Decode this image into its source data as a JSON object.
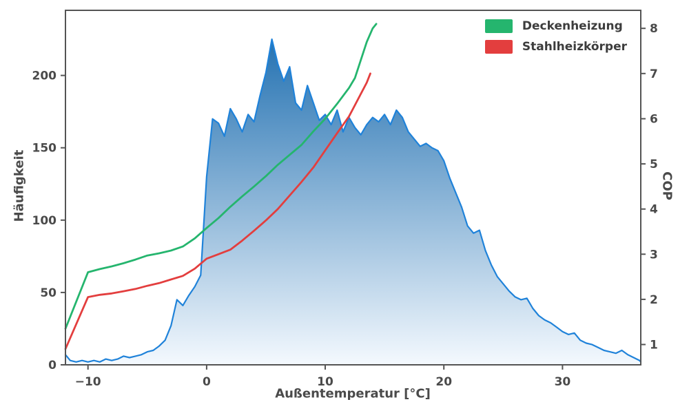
{
  "chart_data": {
    "type": "area+line",
    "title": "",
    "xlabel": "Außentemperatur [°C]",
    "ylabel_left": "Häufigkeit",
    "ylabel_right": "COP",
    "xlim": [
      -11.9,
      36.6
    ],
    "ylim_left": [
      0,
      245
    ],
    "ylim_right": [
      0.55,
      8.4
    ],
    "grid": false,
    "legend_position": "upper right",
    "xtick_values": [
      -10,
      0,
      10,
      20,
      30
    ],
    "xtick_labels": [
      "−10",
      "0",
      "10",
      "20",
      "30"
    ],
    "ytick_left_values": [
      0,
      50,
      100,
      150,
      200
    ],
    "ytick_left_labels": [
      "0",
      "50",
      "100",
      "150",
      "200"
    ],
    "ytick_right_values": [
      1,
      2,
      3,
      4,
      5,
      6,
      7,
      8
    ],
    "ytick_right_labels": [
      "1",
      "2",
      "3",
      "4",
      "5",
      "6",
      "7",
      "8"
    ],
    "style": {
      "spine_color": "#545454",
      "text_color": "#4a4a4a",
      "background": "#ffffff"
    },
    "histogram": {
      "name": "Häufigkeit",
      "axis": "left",
      "line_color": "#1f82d9",
      "gradient_top": "#1266ab",
      "gradient_bottom": "#f4f9fe",
      "points": [
        [
          -11.9,
          7
        ],
        [
          -11.5,
          3
        ],
        [
          -11,
          2
        ],
        [
          -10.5,
          3
        ],
        [
          -10,
          2
        ],
        [
          -9.5,
          3
        ],
        [
          -9,
          2
        ],
        [
          -8.5,
          4
        ],
        [
          -8,
          3
        ],
        [
          -7.5,
          4
        ],
        [
          -7,
          6
        ],
        [
          -6.5,
          5
        ],
        [
          -6,
          6
        ],
        [
          -5.5,
          7
        ],
        [
          -5,
          9
        ],
        [
          -4.5,
          10
        ],
        [
          -4,
          13
        ],
        [
          -3.5,
          17
        ],
        [
          -3,
          27
        ],
        [
          -2.5,
          45
        ],
        [
          -2,
          41
        ],
        [
          -1.5,
          48
        ],
        [
          -1,
          54
        ],
        [
          -0.5,
          62
        ],
        [
          0,
          130
        ],
        [
          0.5,
          170
        ],
        [
          1,
          167
        ],
        [
          1.5,
          158
        ],
        [
          2,
          177
        ],
        [
          2.5,
          170
        ],
        [
          3,
          161
        ],
        [
          3.5,
          173
        ],
        [
          4,
          168
        ],
        [
          4.5,
          186
        ],
        [
          5,
          202
        ],
        [
          5.5,
          225
        ],
        [
          6,
          208
        ],
        [
          6.5,
          196
        ],
        [
          7,
          206
        ],
        [
          7.5,
          181
        ],
        [
          8,
          176
        ],
        [
          8.5,
          193
        ],
        [
          9,
          181
        ],
        [
          9.5,
          169
        ],
        [
          10,
          173
        ],
        [
          10.5,
          166
        ],
        [
          11,
          176
        ],
        [
          11.5,
          161
        ],
        [
          12,
          171
        ],
        [
          12.5,
          164
        ],
        [
          13,
          159
        ],
        [
          13.5,
          166
        ],
        [
          14,
          171
        ],
        [
          14.5,
          168
        ],
        [
          15,
          173
        ],
        [
          15.5,
          166
        ],
        [
          16,
          176
        ],
        [
          16.5,
          171
        ],
        [
          17,
          161
        ],
        [
          17.5,
          156
        ],
        [
          18,
          151
        ],
        [
          18.5,
          153
        ],
        [
          19,
          150
        ],
        [
          19.5,
          148
        ],
        [
          20,
          141
        ],
        [
          20.5,
          129
        ],
        [
          21,
          119
        ],
        [
          21.5,
          109
        ],
        [
          22,
          96
        ],
        [
          22.5,
          91
        ],
        [
          23,
          93
        ],
        [
          23.5,
          79
        ],
        [
          24,
          69
        ],
        [
          24.5,
          61
        ],
        [
          25,
          56
        ],
        [
          25.5,
          51
        ],
        [
          26,
          47
        ],
        [
          26.5,
          45
        ],
        [
          27,
          46
        ],
        [
          27.5,
          39
        ],
        [
          28,
          34
        ],
        [
          28.5,
          31
        ],
        [
          29,
          29
        ],
        [
          29.5,
          26
        ],
        [
          30,
          23
        ],
        [
          30.5,
          21
        ],
        [
          31,
          22
        ],
        [
          31.5,
          17
        ],
        [
          32,
          15
        ],
        [
          32.5,
          14
        ],
        [
          33,
          12
        ],
        [
          33.5,
          10
        ],
        [
          34,
          9
        ],
        [
          34.5,
          8
        ],
        [
          35,
          10
        ],
        [
          35.5,
          7
        ],
        [
          36,
          5
        ],
        [
          36.5,
          3
        ],
        [
          36.6,
          2
        ]
      ]
    },
    "series": [
      {
        "name": "Deckenheizung",
        "axis": "right",
        "color": "#25b56e",
        "points": [
          [
            -11.9,
            1.35
          ],
          [
            -10,
            2.6
          ],
          [
            -9,
            2.67
          ],
          [
            -8,
            2.73
          ],
          [
            -7,
            2.8
          ],
          [
            -6,
            2.88
          ],
          [
            -5,
            2.97
          ],
          [
            -4,
            3.02
          ],
          [
            -3,
            3.08
          ],
          [
            -2,
            3.17
          ],
          [
            -1,
            3.35
          ],
          [
            0,
            3.58
          ],
          [
            1,
            3.8
          ],
          [
            2,
            4.05
          ],
          [
            3,
            4.28
          ],
          [
            4,
            4.5
          ],
          [
            5,
            4.73
          ],
          [
            6,
            4.98
          ],
          [
            7,
            5.2
          ],
          [
            8,
            5.42
          ],
          [
            9,
            5.72
          ],
          [
            10,
            6.0
          ],
          [
            11,
            6.33
          ],
          [
            12,
            6.68
          ],
          [
            12.5,
            6.9
          ],
          [
            13,
            7.3
          ],
          [
            13.5,
            7.7
          ],
          [
            14,
            8.0
          ],
          [
            14.3,
            8.1
          ]
        ]
      },
      {
        "name": "Stahlheizkörper",
        "axis": "right",
        "color": "#e33e3e",
        "points": [
          [
            -11.9,
            0.9
          ],
          [
            -10,
            2.05
          ],
          [
            -9,
            2.1
          ],
          [
            -8,
            2.13
          ],
          [
            -7,
            2.18
          ],
          [
            -6,
            2.23
          ],
          [
            -5,
            2.3
          ],
          [
            -4,
            2.36
          ],
          [
            -3,
            2.44
          ],
          [
            -2,
            2.52
          ],
          [
            -1,
            2.68
          ],
          [
            0,
            2.9
          ],
          [
            1,
            3.0
          ],
          [
            2,
            3.1
          ],
          [
            3,
            3.3
          ],
          [
            4,
            3.52
          ],
          [
            5,
            3.75
          ],
          [
            6,
            4.0
          ],
          [
            7,
            4.3
          ],
          [
            8,
            4.6
          ],
          [
            9,
            4.92
          ],
          [
            10,
            5.3
          ],
          [
            11,
            5.68
          ],
          [
            12,
            6.05
          ],
          [
            13,
            6.55
          ],
          [
            13.5,
            6.8
          ],
          [
            13.8,
            7.0
          ]
        ]
      }
    ]
  }
}
